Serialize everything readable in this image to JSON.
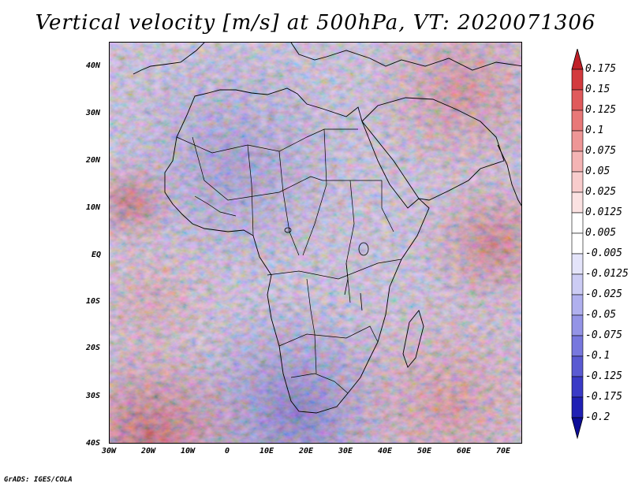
{
  "title": "Vertical velocity [m/s] at 500hPa, VT: 2020071306",
  "credit": "GrADS: IGES/COLA",
  "map": {
    "lat_labels": [
      "40N",
      "30N",
      "20N",
      "10N",
      "EQ",
      "10S",
      "20S",
      "30S",
      "40S"
    ],
    "lon_labels": [
      "30W",
      "20W",
      "10W",
      "0",
      "10E",
      "20E",
      "30E",
      "40E",
      "50E",
      "60E",
      "70E"
    ]
  },
  "colorbar": {
    "labels": [
      "0.175",
      "0.15",
      "0.125",
      "0.1",
      "0.075",
      "0.05",
      "0.025",
      "0.0125",
      "0.005",
      "-0.005",
      "-0.0125",
      "-0.025",
      "-0.05",
      "-0.075",
      "-0.1",
      "-0.125",
      "-0.175",
      "-0.2"
    ],
    "colors": [
      "#c02028",
      "#d33a3e",
      "#e05a5c",
      "#e87878",
      "#ee9696",
      "#f4b4b4",
      "#f8cccc",
      "#fbe2e2",
      "#ffffff",
      "#ffffff",
      "#e4e4fa",
      "#ccccf4",
      "#b0b0ee",
      "#9494e6",
      "#7878de",
      "#5a5ad2",
      "#3a3ac6",
      "#2020b4",
      "#0c0c98"
    ]
  }
}
